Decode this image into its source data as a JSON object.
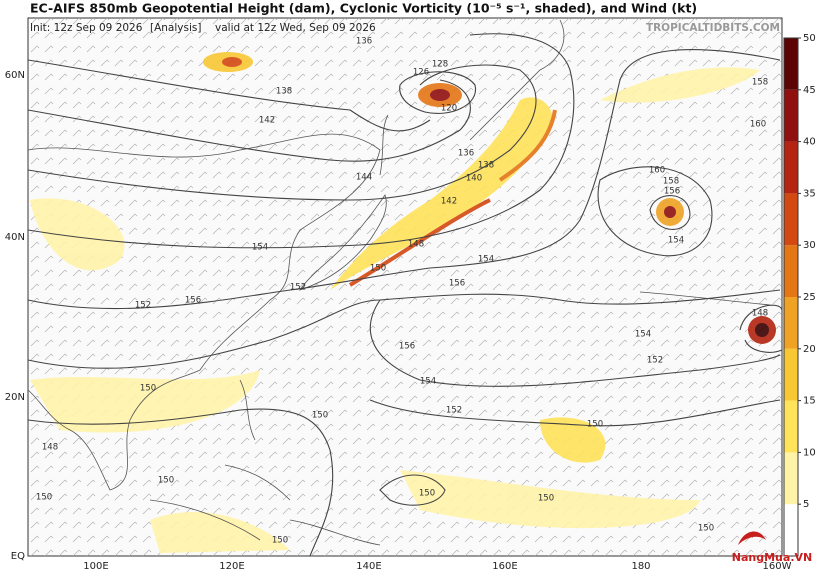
{
  "header": {
    "title": "EC-AIFS 850mb Geopotential Height (dam), Cyclonic Vorticity (10⁻⁵ s⁻¹, shaded), and Wind (kt)",
    "init": "Init: 12z Sep 09 2026",
    "analysis": "[Analysis]",
    "valid": "valid at 12z Wed, Sep 09 2026",
    "site": "TROPICALTIDBITS.COM"
  },
  "map": {
    "lat_labels": [
      "60N",
      "40N",
      "20N",
      "EQ"
    ],
    "lon_labels": [
      "100E",
      "120E",
      "140E",
      "160E",
      "180",
      "160W"
    ],
    "contour_labels": [
      136,
      128,
      126,
      120,
      138,
      142,
      144,
      136,
      138,
      140,
      142,
      148,
      150,
      154,
      152,
      156,
      152,
      154,
      156,
      158,
      160,
      160,
      158,
      156,
      154,
      148,
      154,
      152,
      156,
      154,
      152,
      150,
      150,
      150,
      148,
      150,
      150,
      150,
      150,
      150,
      150
    ]
  },
  "colorbar": {
    "range": [
      0,
      50
    ],
    "ticks": [
      5,
      10,
      15,
      20,
      25,
      30,
      35,
      40,
      45,
      50
    ],
    "colors": [
      "#ffffff",
      "#fff3a8",
      "#ffe35a",
      "#f8c834",
      "#f0a224",
      "#e47616",
      "#d44812",
      "#b42410",
      "#901010",
      "#5c0404"
    ]
  },
  "watermark": "NangMua.VN"
}
